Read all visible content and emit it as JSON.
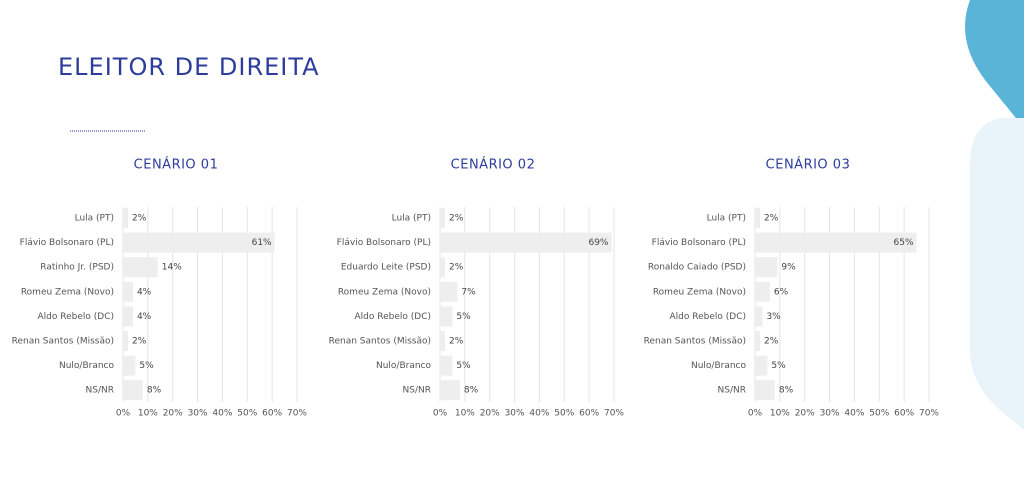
{
  "title": "ELEITOR DE DIREITA",
  "chart_data": [
    {
      "type": "bar",
      "orientation": "horizontal",
      "title": "CENÁRIO 01",
      "color": "#eeeeee",
      "grid": true,
      "categories": [
        "Lula (PT)",
        "Flávio Bolsonaro (PL)",
        "Ratinho Jr. (PSD)",
        "Romeu Zema (Novo)",
        "Aldo Rebelo (DC)",
        "Renan Santos (Missão)",
        "Nulo/Branco",
        "NS/NR"
      ],
      "values": [
        2,
        61,
        14,
        4,
        4,
        2,
        5,
        8
      ],
      "value_labels": [
        "2%",
        "61%",
        "14%",
        "4%",
        "4%",
        "2%",
        "5%",
        "8%"
      ],
      "xlim": [
        0,
        70
      ],
      "xticks": [
        {
          "value": 0,
          "label": "0%"
        },
        {
          "value": 10,
          "label": "10%"
        },
        {
          "value": 20,
          "label": "20%"
        },
        {
          "value": 30,
          "label": "30%"
        },
        {
          "value": 40,
          "label": "40%"
        },
        {
          "value": 50,
          "label": "50%"
        },
        {
          "value": 60,
          "label": "60%"
        },
        {
          "value": 70,
          "label": "70%"
        }
      ]
    },
    {
      "type": "bar",
      "orientation": "horizontal",
      "title": "CENÁRIO 02",
      "color": "#eeeeee",
      "grid": true,
      "categories": [
        "Lula (PT)",
        "Flávio Bolsonaro (PL)",
        "Eduardo Leite (PSD)",
        "Romeu Zema (Novo)",
        "Aldo Rebelo (DC)",
        "Renan Santos (Missão)",
        "Nulo/Branco",
        "NS/NR"
      ],
      "values": [
        2,
        69,
        2,
        7,
        5,
        2,
        5,
        8
      ],
      "value_labels": [
        "2%",
        "69%",
        "2%",
        "7%",
        "5%",
        "2%",
        "5%",
        "8%"
      ],
      "xlim": [
        0,
        70
      ],
      "xticks": [
        {
          "value": 0,
          "label": "0%"
        },
        {
          "value": 10,
          "label": "10%"
        },
        {
          "value": 20,
          "label": "20%"
        },
        {
          "value": 30,
          "label": "30%"
        },
        {
          "value": 40,
          "label": "40%"
        },
        {
          "value": 50,
          "label": "50%"
        },
        {
          "value": 60,
          "label": "60%"
        },
        {
          "value": 70,
          "label": "70%"
        }
      ]
    },
    {
      "type": "bar",
      "orientation": "horizontal",
      "title": "CENÁRIO 03",
      "color": "#eeeeee",
      "grid": true,
      "categories": [
        "Lula (PT)",
        "Flávio Bolsonaro (PL)",
        "Ronaldo Caiado (PSD)",
        "Romeu Zema (Novo)",
        "Aldo Rebelo (DC)",
        "Renan Santos (Missão)",
        "Nulo/Branco",
        "NS/NR"
      ],
      "values": [
        2,
        65,
        9,
        6,
        3,
        2,
        5,
        8
      ],
      "value_labels": [
        "2%",
        "65%",
        "9%",
        "6%",
        "3%",
        "2%",
        "5%",
        "8%"
      ],
      "xlim": [
        0,
        70
      ],
      "xticks": [
        {
          "value": 0,
          "label": "0%"
        },
        {
          "value": 10,
          "label": "10%"
        },
        {
          "value": 20,
          "label": "20%"
        },
        {
          "value": 30,
          "label": "30%"
        },
        {
          "value": 40,
          "label": "40%"
        },
        {
          "value": 50,
          "label": "50%"
        },
        {
          "value": 60,
          "label": "60%"
        },
        {
          "value": 70,
          "label": "70%"
        }
      ]
    }
  ]
}
